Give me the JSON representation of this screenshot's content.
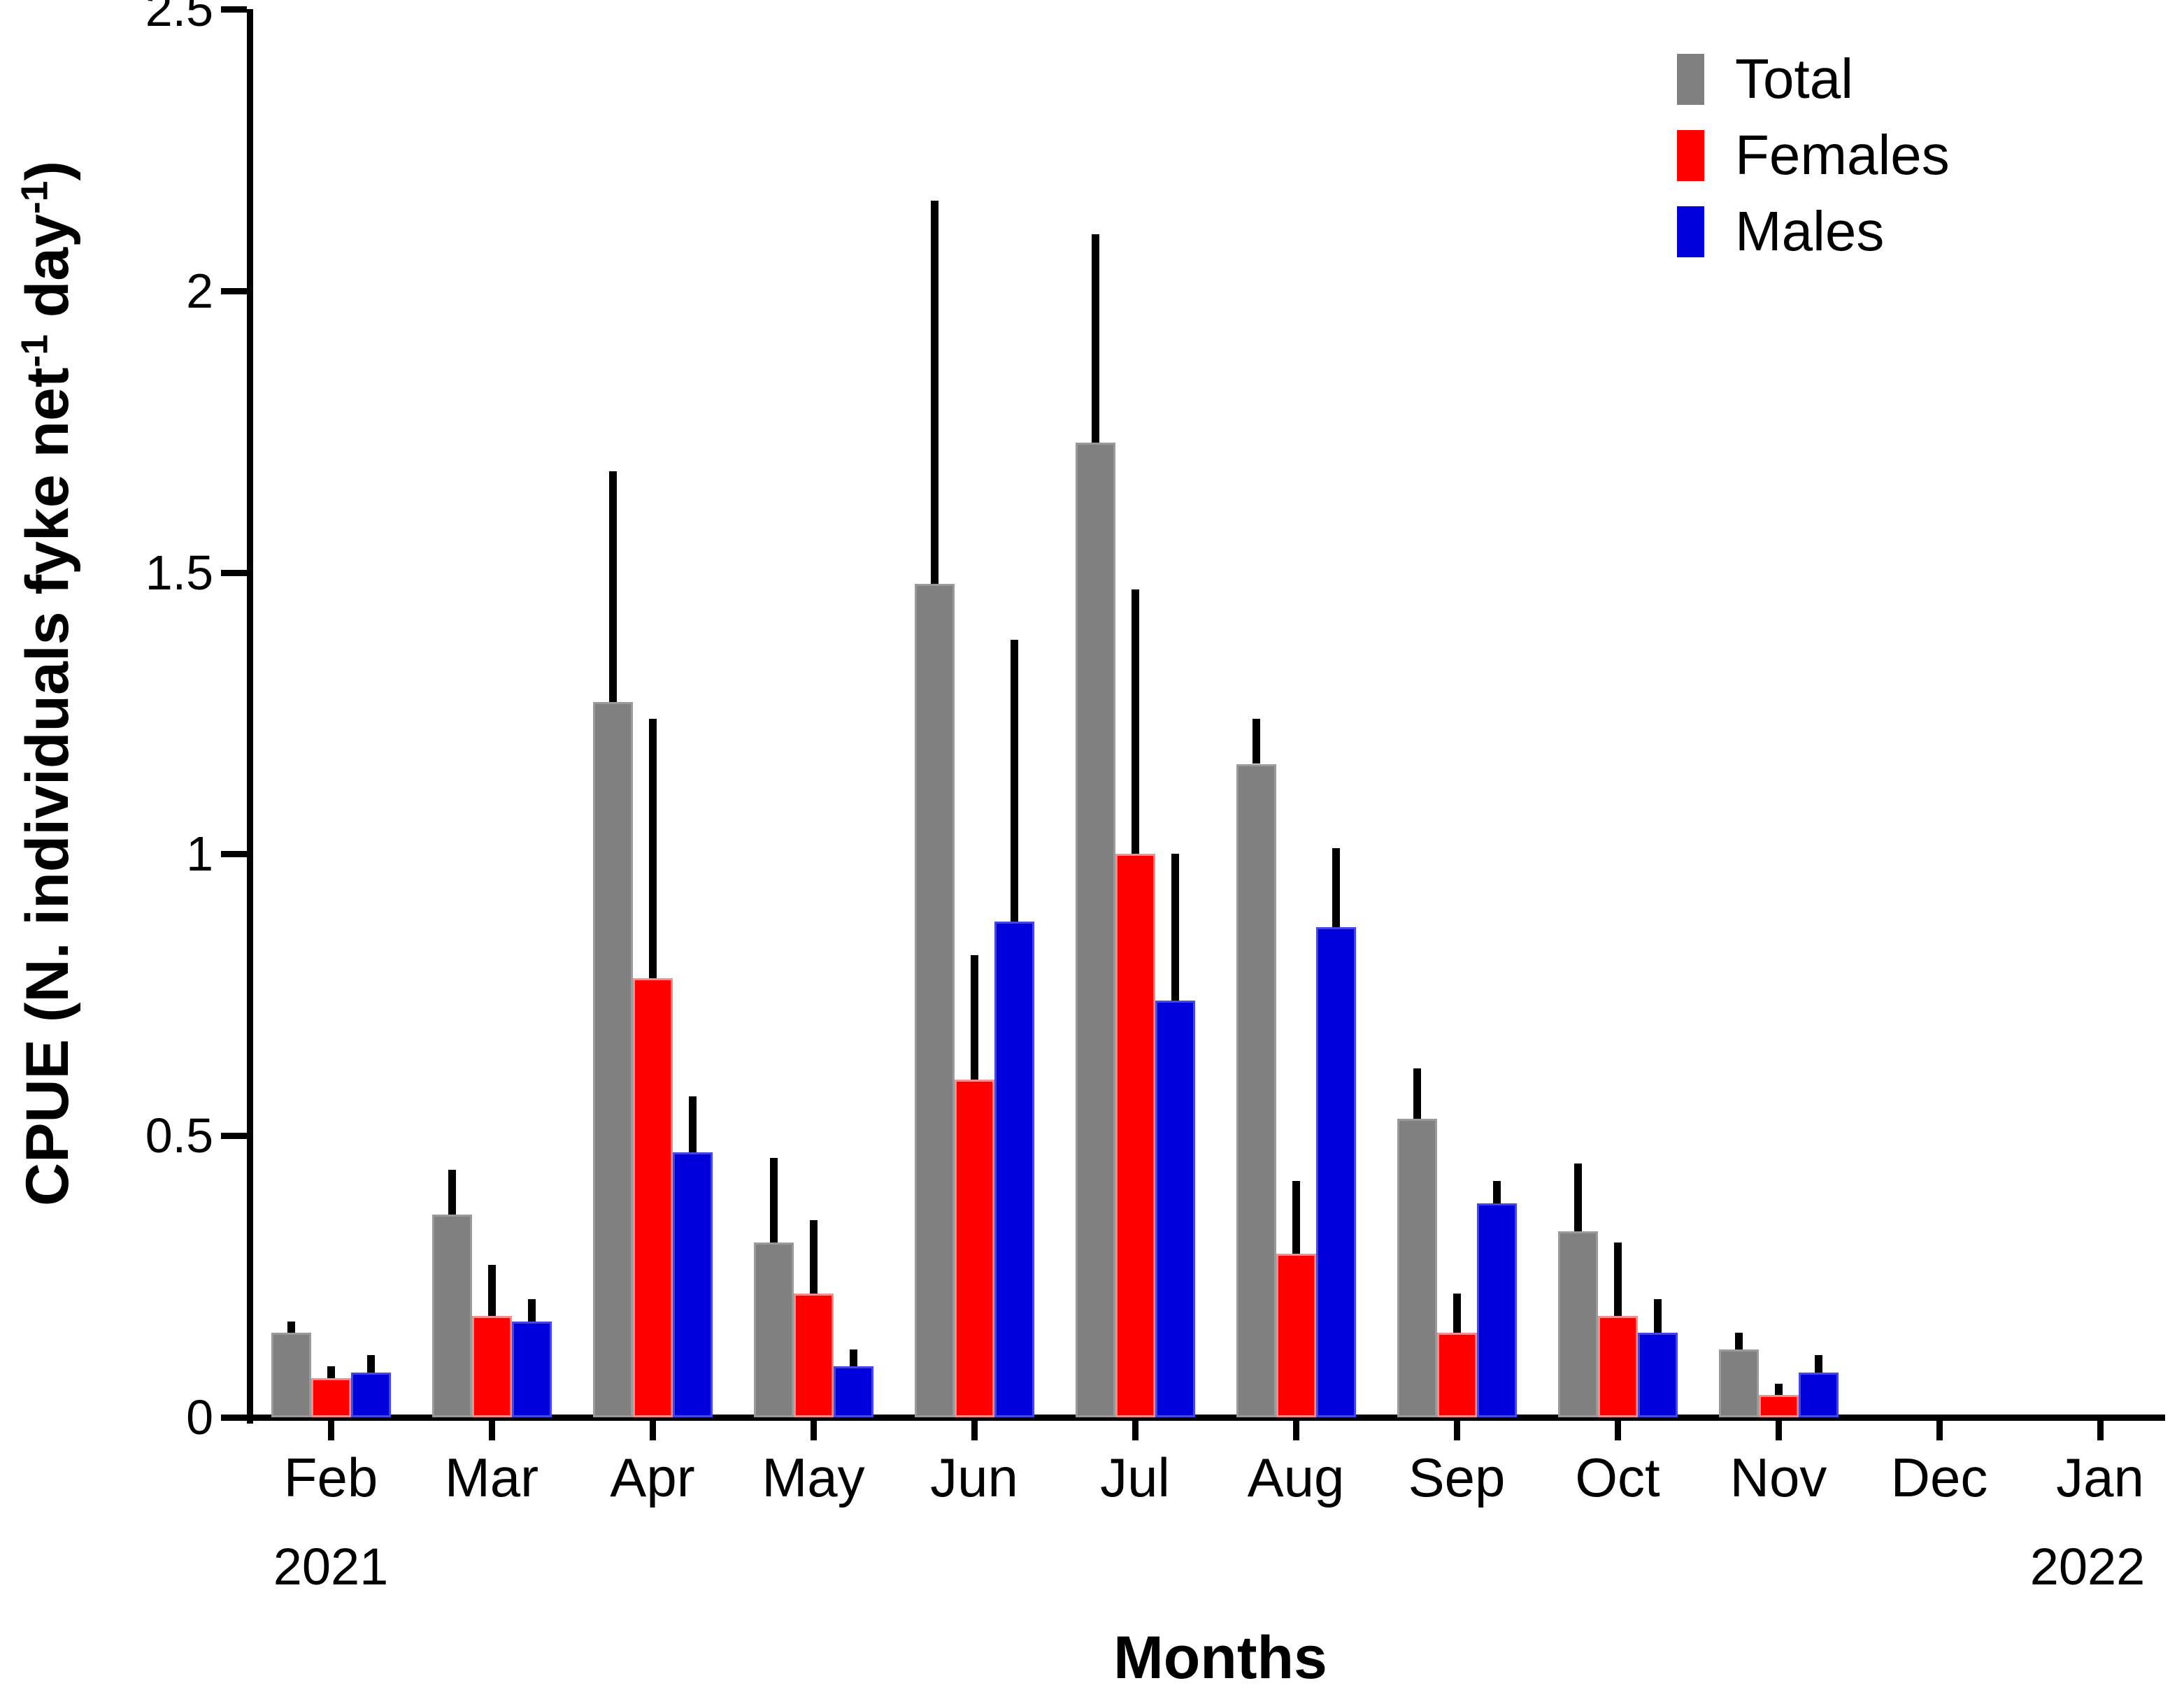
{
  "chart_data": {
    "type": "bar",
    "title": "",
    "xlabel": "Months",
    "ylabel": "CPUE (N. individuals fyke net-1 day-1)",
    "ylabel_parts": {
      "pre": "CPUE (N. individuals fyke net",
      "sup1": "-1",
      "mid": " day",
      "sup2": "-1",
      "post": ")"
    },
    "ylim": [
      0,
      2.5
    ],
    "ytick_values": [
      0,
      0.5,
      1,
      1.5,
      2,
      2.5
    ],
    "ytick_labels": [
      "0",
      "0.5",
      "1",
      "1.5",
      "2",
      "2.5"
    ],
    "grid": false,
    "error_bars": "upper-only-black",
    "categories": [
      "Feb",
      "Mar",
      "Apr",
      "May",
      "Jun",
      "Jul",
      "Aug",
      "Sep",
      "Oct",
      "Nov",
      "Dec",
      "Jan"
    ],
    "x_year_labels": [
      {
        "label": "2021",
        "month_index": 0
      },
      {
        "label": "2022",
        "month_index": 11
      }
    ],
    "legend": {
      "position": "top-right",
      "entries": [
        {
          "label": "Total",
          "color": "#808080"
        },
        {
          "label": "Females",
          "color": "#ff0000"
        },
        {
          "label": "Males",
          "color": "#0000dd"
        }
      ]
    },
    "series": [
      {
        "name": "Total",
        "color": "#808080",
        "edge_color": "#9a9a9a",
        "values": [
          0.15,
          0.36,
          1.27,
          0.31,
          1.48,
          1.73,
          1.16,
          0.53,
          0.33,
          0.12,
          null,
          null
        ],
        "errors_plus": [
          0.02,
          0.08,
          0.41,
          0.15,
          0.68,
          0.37,
          0.08,
          0.09,
          0.12,
          0.03,
          null,
          null
        ]
      },
      {
        "name": "Females",
        "color": "#ff0000",
        "edge_color": "#ff8a8a",
        "values": [
          0.07,
          0.18,
          0.78,
          0.22,
          0.6,
          1.0,
          0.29,
          0.15,
          0.18,
          0.04,
          null,
          null
        ],
        "errors_plus": [
          0.02,
          0.09,
          0.46,
          0.13,
          0.22,
          0.47,
          0.13,
          0.07,
          0.13,
          0.02,
          null,
          null
        ]
      },
      {
        "name": "Males",
        "color": "#0000dd",
        "edge_color": "#4646e6",
        "values": [
          0.08,
          0.17,
          0.47,
          0.09,
          0.88,
          0.74,
          0.87,
          0.38,
          0.15,
          0.08,
          null,
          null
        ],
        "errors_plus": [
          0.03,
          0.04,
          0.1,
          0.03,
          0.5,
          0.26,
          0.14,
          0.04,
          0.06,
          0.03,
          null,
          null
        ]
      }
    ]
  }
}
